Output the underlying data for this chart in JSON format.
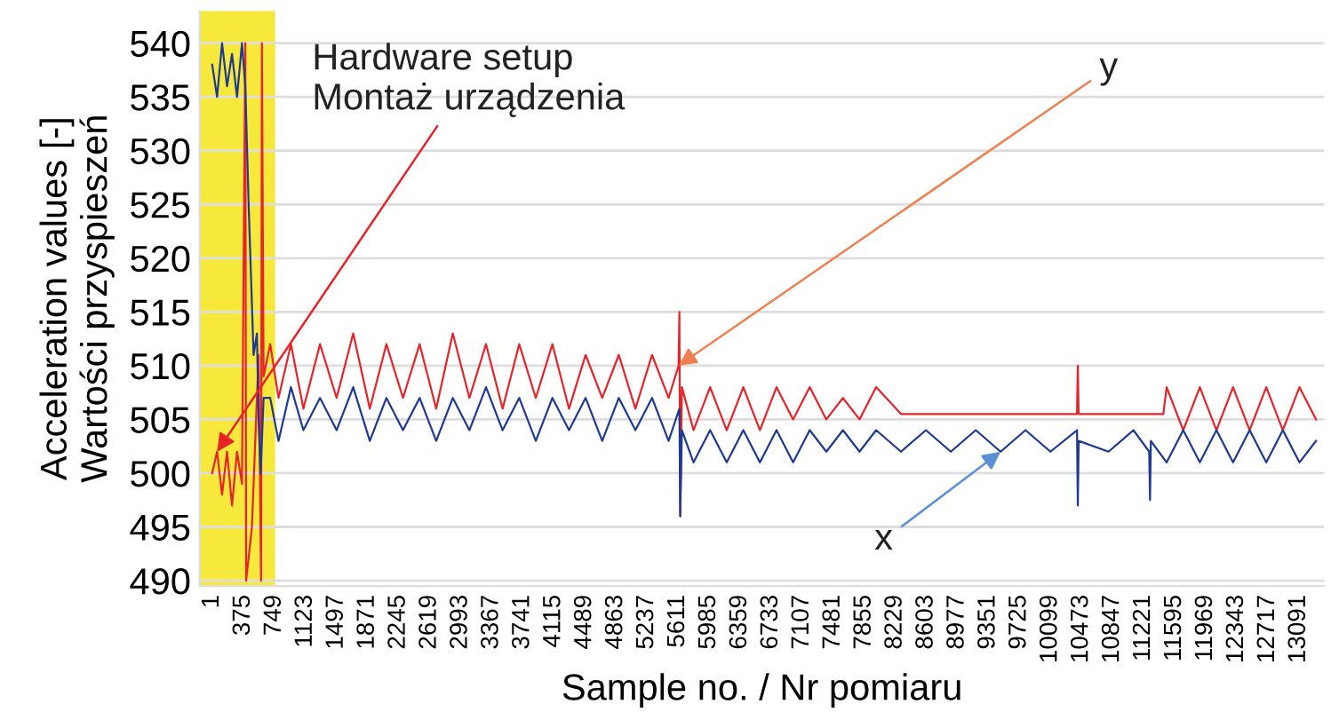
{
  "chart_data": {
    "type": "line",
    "xlabel": "Sample no. / Nr pomiaru",
    "ylabel": "Acceleration values [-]\nWartości przyspieszeń",
    "xlim": [
      -150,
      13400
    ],
    "ylim": [
      489.5,
      543
    ],
    "xticks": [
      1,
      375,
      749,
      1123,
      1497,
      1871,
      2245,
      2619,
      2993,
      3367,
      3741,
      4115,
      4489,
      4863,
      5237,
      5611,
      5985,
      6359,
      6733,
      7107,
      7481,
      7855,
      8229,
      8603,
      8977,
      9351,
      9725,
      10099,
      10473,
      10847,
      11221,
      11595,
      11969,
      12343,
      12717,
      13091
    ],
    "yticks": [
      490,
      495,
      500,
      505,
      510,
      515,
      520,
      525,
      530,
      535,
      540
    ],
    "grid": "y",
    "legend": false,
    "line_style": "solid",
    "marker": "none",
    "bands": [
      {
        "axis": "x",
        "from": -150,
        "to": 760,
        "color": "#f7e93b"
      }
    ],
    "series": [
      {
        "color": "#e8232a",
        "x": [
          1,
          60,
          120,
          180,
          240,
          300,
          360,
          400,
          410,
          480,
          560,
          590,
          600,
          620,
          700,
          800,
          950,
          1100,
          1300,
          1500,
          1700,
          1900,
          2100,
          2300,
          2500,
          2700,
          2900,
          3100,
          3300,
          3500,
          3700,
          3900,
          4100,
          4300,
          4500,
          4700,
          4900,
          5100,
          5300,
          5500,
          5620,
          5630,
          5640,
          5660,
          5800,
          6000,
          6200,
          6400,
          6600,
          6800,
          7000,
          7200,
          7400,
          7600,
          7800,
          8000,
          8300,
          10420,
          10430,
          10440,
          11460,
          11500,
          11700,
          11900,
          12100,
          12300,
          12500,
          12700,
          12900,
          13100,
          13300
        ],
        "values": [
          500,
          502,
          498,
          502,
          497,
          502,
          499,
          540,
          490,
          495,
          511,
          490,
          540,
          509,
          512,
          507,
          512,
          506,
          512,
          507,
          513,
          506,
          512,
          507,
          512,
          506,
          513,
          507,
          512,
          506,
          512,
          507,
          512,
          506,
          511,
          507,
          511,
          506,
          511,
          507,
          510,
          515,
          496,
          508,
          504,
          508,
          504,
          508,
          504,
          508,
          505,
          508,
          505,
          507,
          505,
          508,
          505.5,
          505.5,
          510,
          505.5,
          505.5,
          508,
          504,
          508,
          504,
          508,
          504,
          508,
          504,
          508,
          505
        ]
      },
      {
        "color": "#1f3a93",
        "x": [
          1,
          60,
          120,
          180,
          240,
          300,
          360,
          400,
          440,
          500,
          540,
          560,
          585,
          620,
          700,
          800,
          950,
          1100,
          1300,
          1500,
          1700,
          1900,
          2100,
          2300,
          2500,
          2700,
          2900,
          3100,
          3300,
          3500,
          3700,
          3900,
          4100,
          4300,
          4500,
          4700,
          4900,
          5100,
          5300,
          5500,
          5630,
          5640,
          5660,
          5800,
          6000,
          6200,
          6400,
          6600,
          6800,
          7000,
          7200,
          7400,
          7600,
          7800,
          8000,
          8300,
          8600,
          8900,
          9200,
          9500,
          9800,
          10100,
          10420,
          10430,
          10440,
          10800,
          11100,
          11290,
          11300,
          11310,
          11500,
          11700,
          11900,
          12100,
          12300,
          12500,
          12700,
          12900,
          13100,
          13300
        ],
        "values": [
          538,
          535,
          540,
          536,
          539,
          535,
          540,
          536,
          525,
          511,
          513,
          505,
          500,
          507,
          507,
          503,
          508,
          504,
          507,
          504,
          508,
          503,
          507,
          504,
          507,
          503,
          507,
          504,
          508,
          504,
          507,
          503,
          507,
          504,
          507,
          503,
          507,
          504,
          507,
          503,
          506,
          496,
          504,
          501,
          504,
          501,
          504,
          501,
          504,
          501,
          504,
          502,
          504,
          502,
          504,
          502,
          504,
          502,
          504,
          502,
          504,
          502,
          504,
          497,
          503,
          502,
          504,
          502,
          497.5,
          503,
          501,
          504,
          501,
          504,
          501,
          504,
          501,
          504,
          501,
          503
        ]
      }
    ],
    "annotations": [
      {
        "text": "Hardware setup\nMontaż urządzenia",
        "x": 60,
        "y": 502
      },
      {
        "text": "y",
        "x": 5620,
        "y": 510
      },
      {
        "text": "x",
        "x": 9500,
        "y": 502
      }
    ]
  }
}
